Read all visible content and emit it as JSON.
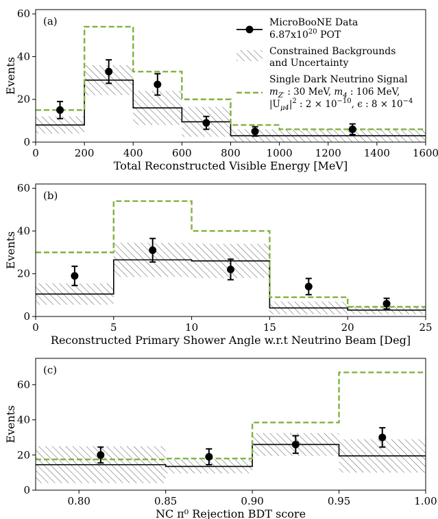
{
  "figure": {
    "colors": {
      "data": "#000000",
      "background": "#000000",
      "signal": "#7fb23f",
      "hatch": "#555555"
    }
  },
  "legend": {
    "data_label_line1": "MicroBooNE Data",
    "data_label_line2": "6.87x10",
    "data_label_exp": "20",
    "data_label_unit": " POT",
    "bkg_label_line1": "Constrained Backgrounds",
    "bkg_label_line2": "and Uncertainty",
    "sig_label_line1": "Single Dark Neutrino Signal",
    "sig_label_line2": "m",
    "sig_label_line2_sub": "Z′",
    "sig_label_line2_rest": " : 30 MeV, ",
    "sig_label_line2_m4": "m",
    "sig_label_line2_m4sub": "4",
    "sig_label_line2_m4rest": " : 106 MeV,",
    "sig_label_line3": "|U",
    "sig_label_line3_sub": "μ4",
    "sig_label_line3_rest": "|",
    "sig_label_line3_sq": "2",
    "sig_label_line3_val": " : 2 × 10",
    "sig_label_line3_exp1": "−10",
    "sig_label_line3_eps": ", ϵ : 8 × 10",
    "sig_label_line3_exp2": "−4"
  },
  "chart_data": [
    {
      "type": "bar",
      "panel": "(a)",
      "xlabel": "Total Reconstructed Visible Energy [MeV]",
      "ylabel": "Events",
      "xlim": [
        0,
        1600
      ],
      "ylim": [
        0,
        62
      ],
      "xticks": [
        0,
        200,
        400,
        600,
        800,
        1000,
        1200,
        1400,
        1600
      ],
      "xtick_labels": [
        "0",
        "200",
        "400",
        "600",
        "800",
        "1000",
        "1200",
        "1400",
        "1600"
      ],
      "yticks": [
        0,
        20,
        40,
        60
      ],
      "ytick_labels": [
        "0",
        "20",
        "40",
        "60"
      ],
      "bin_edges": [
        0,
        200,
        400,
        600,
        800,
        1600
      ],
      "background": [
        8,
        29,
        16,
        9.5,
        3
      ],
      "background_err": [
        4,
        7,
        8,
        7,
        3
      ],
      "signal": [
        15,
        54,
        33,
        20,
        8,
        6
      ],
      "signal_edges": [
        0,
        200,
        400,
        600,
        800,
        1000,
        1600
      ],
      "data_x": [
        100,
        300,
        500,
        700,
        900,
        1300
      ],
      "data_y": [
        15,
        33,
        27,
        9,
        5,
        6
      ],
      "data_err": [
        4,
        5.5,
        5,
        3,
        2.2,
        2.5
      ],
      "legend_loc": "upper right"
    },
    {
      "type": "bar",
      "panel": "(b)",
      "xlabel": "Reconstructed Primary Shower Angle w.r.t Neutrino Beam [Deg]",
      "ylabel": "Events",
      "xlim": [
        0,
        25
      ],
      "ylim": [
        0,
        62
      ],
      "xticks": [
        0,
        5,
        10,
        15,
        20,
        25
      ],
      "xtick_labels": [
        "0",
        "5",
        "10",
        "15",
        "20",
        "25"
      ],
      "yticks": [
        0,
        20,
        40,
        60
      ],
      "ytick_labels": [
        "0",
        "20",
        "40",
        "60"
      ],
      "bin_edges": [
        0,
        5,
        10,
        15,
        20,
        25
      ],
      "background": [
        10.5,
        26.5,
        26,
        4,
        3
      ],
      "background_err": [
        5,
        8,
        8,
        3,
        2
      ],
      "signal": [
        30,
        54,
        40,
        9,
        4.5
      ],
      "signal_edges": [
        0,
        5,
        10,
        15,
        20,
        25
      ],
      "data_x": [
        2.5,
        7.5,
        12.5,
        17.5,
        22.5
      ],
      "data_y": [
        19,
        31,
        22,
        14,
        6
      ],
      "data_err": [
        4.5,
        5.5,
        4.8,
        3.8,
        2.5
      ]
    },
    {
      "type": "bar",
      "panel": "(c)",
      "xlabel": "NC π⁰ Rejection BDT score",
      "ylabel": "Events",
      "xlim": [
        0.775,
        1.0
      ],
      "ylim": [
        0,
        75
      ],
      "xticks": [
        0.8,
        0.85,
        0.9,
        0.95,
        1.0
      ],
      "xtick_labels": [
        "0.80",
        "0.85",
        "0.90",
        "0.95",
        "1.00"
      ],
      "yticks": [
        0,
        20,
        40,
        60
      ],
      "ytick_labels": [
        "0",
        "20",
        "40",
        "60"
      ],
      "bin_edges": [
        0.775,
        0.85,
        0.9,
        0.95,
        1.0
      ],
      "background": [
        14.5,
        13.5,
        26,
        19.5
      ],
      "background_err": [
        10.5,
        4,
        6.5,
        9.5
      ],
      "signal": [
        17.5,
        18,
        38.5,
        67
      ],
      "signal_edges": [
        0.775,
        0.85,
        0.9,
        0.95,
        1.0
      ],
      "data_x": [
        0.8125,
        0.875,
        0.925,
        0.975
      ],
      "data_y": [
        20,
        19,
        26,
        30
      ],
      "data_err": [
        4.5,
        4.5,
        5,
        5.5
      ]
    }
  ]
}
